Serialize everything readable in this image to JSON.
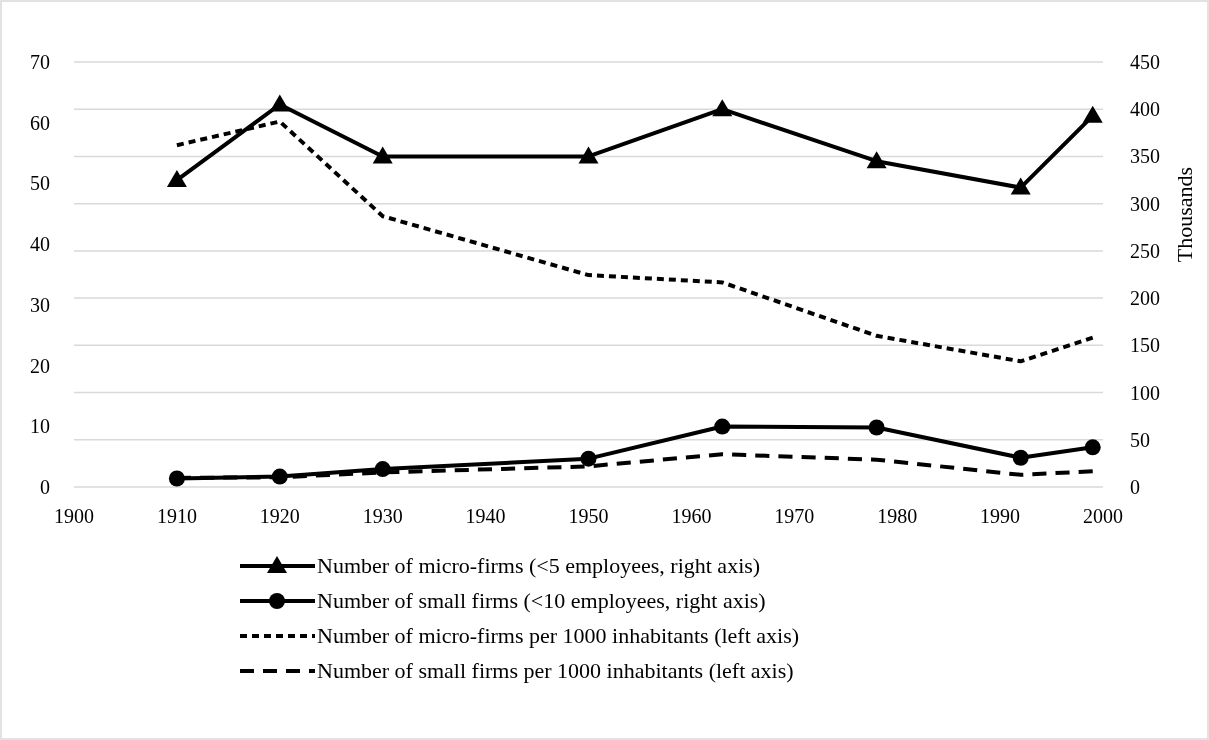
{
  "chart_data": {
    "type": "line",
    "x": [
      1910,
      1920,
      1930,
      1950,
      1963,
      1978,
      1992,
      1999
    ],
    "xlim": [
      1900,
      2000
    ],
    "xticks": [
      1900,
      1910,
      1920,
      1930,
      1940,
      1950,
      1960,
      1970,
      1980,
      1990,
      2000
    ],
    "ylim": [
      0,
      70
    ],
    "yticks": [
      0,
      10,
      20,
      30,
      40,
      50,
      60,
      70
    ],
    "y2lim": [
      0,
      450
    ],
    "y2ticks": [
      0,
      50,
      100,
      150,
      200,
      250,
      300,
      350,
      400,
      450
    ],
    "y2label": "Thousands",
    "grid": "y",
    "legend": "bottom",
    "series": [
      {
        "name": "Number of micro-firms (<5 employees, right axis)",
        "color": "#000000",
        "axis": "y2",
        "marker": "triangle",
        "line_style": "solid",
        "values": [
          325,
          405,
          350,
          350,
          400,
          345,
          317,
          393
        ]
      },
      {
        "name": "Number of small firms (<10 employees, right axis)",
        "color": "#000000",
        "axis": "y2",
        "marker": "circle",
        "line_style": "solid",
        "values": [
          9,
          11,
          19,
          30,
          64,
          63,
          31,
          42
        ]
      },
      {
        "name": "Number of micro-firms per 1000 inhabitants (left axis)",
        "color": "#000000",
        "marker": "none",
        "line_style": "dashed",
        "values": [
          56.3,
          60.2,
          44.6,
          34.9,
          33.7,
          24.9,
          20.7,
          24.6
        ]
      },
      {
        "name": "Number of small firms per 1000 inhabitants (left axis)",
        "color": "#000000",
        "marker": "none",
        "line_style": "dashed",
        "values": [
          1.5,
          1.6,
          2.4,
          3.4,
          5.4,
          4.5,
          2.0,
          2.6
        ]
      }
    ]
  }
}
